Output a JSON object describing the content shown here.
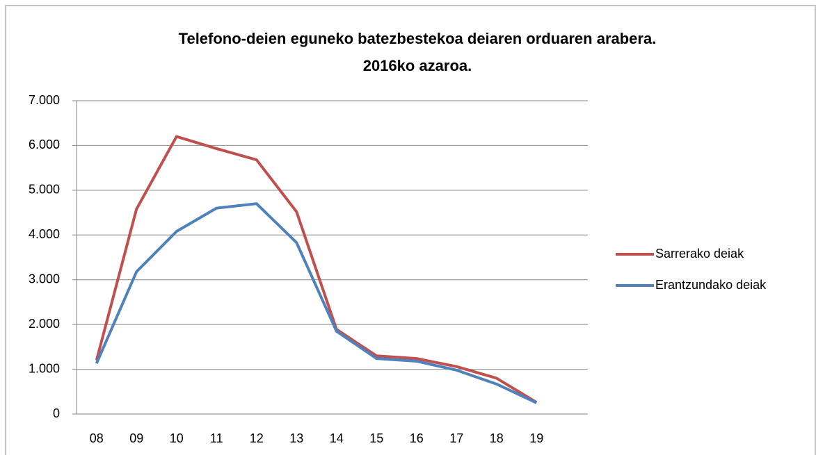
{
  "chart_data": {
    "type": "line",
    "title": [
      "Telefono-deien eguneko batezbestekoa deiaren orduaren arabera.",
      "2016ko azaroa."
    ],
    "categories": [
      "08",
      "09",
      "10",
      "11",
      "12",
      "13",
      "14",
      "15",
      "16",
      "17",
      "18",
      "19"
    ],
    "series": [
      {
        "name": "Sarrerako deiak",
        "color": "#c0504d",
        "values": [
          1200,
          4580,
          6200,
          5930,
          5680,
          4520,
          1890,
          1300,
          1240,
          1060,
          800,
          260
        ]
      },
      {
        "name": "Erantzundako deiak",
        "color": "#4f81bd",
        "values": [
          1130,
          3180,
          4080,
          4600,
          4700,
          3830,
          1850,
          1240,
          1180,
          980,
          670,
          250
        ]
      }
    ],
    "ylim": [
      0,
      7000
    ],
    "yticks": [
      0,
      {
        "value": 1000,
        "label": "1.000"
      },
      {
        "value": 2000,
        "label": "2.000"
      },
      {
        "value": 3000,
        "label": "3.000"
      },
      {
        "value": 4000,
        "label": "4.000"
      },
      {
        "value": 5000,
        "label": "5.000"
      },
      {
        "value": 6000,
        "label": "6.000"
      },
      {
        "value": 7000,
        "label": "7.000"
      }
    ],
    "grid": true,
    "legend": "right"
  }
}
